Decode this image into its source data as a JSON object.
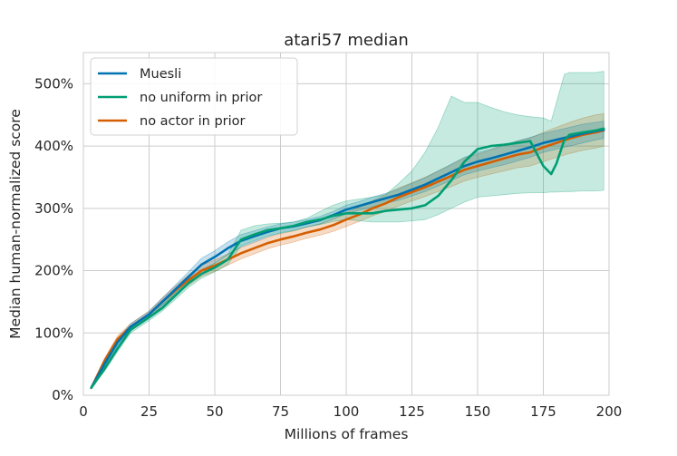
{
  "chart_data": {
    "type": "line",
    "title": "atari57 median",
    "xlabel": "Millions of frames",
    "ylabel": "Median human-normalized score",
    "xlim": [
      0,
      200
    ],
    "ylim": [
      0,
      550
    ],
    "xticks": [
      0,
      25,
      50,
      75,
      100,
      125,
      150,
      175,
      200
    ],
    "xtick_labels": [
      "0",
      "25",
      "50",
      "75",
      "100",
      "125",
      "150",
      "175",
      "200"
    ],
    "yticks": [
      0,
      100,
      200,
      300,
      400,
      500
    ],
    "ytick_labels": [
      "0%",
      "100%",
      "200%",
      "300%",
      "400%",
      "500%"
    ],
    "grid": true,
    "legend_position": "top-left",
    "series": [
      {
        "name": "Muesli",
        "color": "#0072b2",
        "x": [
          3,
          8,
          13,
          18,
          25,
          30,
          35,
          40,
          45,
          50,
          55,
          60,
          65,
          70,
          75,
          80,
          85,
          90,
          95,
          100,
          105,
          110,
          115,
          120,
          125,
          130,
          135,
          140,
          145,
          150,
          155,
          160,
          165,
          170,
          175,
          180,
          185,
          190,
          195,
          198
        ],
        "y": [
          12,
          50,
          85,
          110,
          130,
          150,
          170,
          190,
          210,
          222,
          236,
          248,
          255,
          262,
          268,
          271,
          276,
          281,
          289,
          298,
          304,
          310,
          316,
          322,
          330,
          338,
          348,
          358,
          368,
          375,
          380,
          386,
          392,
          398,
          405,
          410,
          415,
          420,
          424,
          426
        ],
        "lower": [
          12,
          46,
          80,
          105,
          125,
          144,
          163,
          182,
          200,
          212,
          226,
          238,
          246,
          254,
          261,
          265,
          270,
          275,
          283,
          291,
          297,
          302,
          308,
          313,
          320,
          327,
          336,
          345,
          354,
          360,
          365,
          370,
          376,
          382,
          390,
          395,
          400,
          405,
          410,
          412
        ],
        "upper": [
          12,
          54,
          90,
          115,
          135,
          156,
          177,
          198,
          220,
          232,
          246,
          258,
          264,
          270,
          275,
          278,
          282,
          287,
          295,
          305,
          311,
          318,
          324,
          331,
          340,
          349,
          360,
          371,
          382,
          390,
          395,
          402,
          408,
          414,
          420,
          425,
          430,
          435,
          438,
          440
        ]
      },
      {
        "name": "no uniform in prior",
        "color": "#009e73",
        "x": [
          3,
          8,
          13,
          18,
          25,
          30,
          35,
          40,
          45,
          50,
          55,
          60,
          65,
          70,
          75,
          80,
          85,
          90,
          95,
          100,
          105,
          110,
          115,
          120,
          125,
          130,
          135,
          140,
          145,
          150,
          155,
          160,
          165,
          170,
          175,
          178,
          180,
          183,
          185,
          190,
          195,
          198
        ],
        "y": [
          12,
          42,
          75,
          105,
          125,
          140,
          160,
          180,
          195,
          205,
          218,
          250,
          258,
          265,
          268,
          272,
          278,
          282,
          288,
          292,
          292,
          292,
          296,
          298,
          300,
          305,
          320,
          345,
          375,
          395,
          400,
          402,
          405,
          408,
          368,
          355,
          372,
          410,
          418,
          422,
          425,
          428
        ],
        "lower": [
          12,
          38,
          70,
          100,
          120,
          135,
          154,
          173,
          188,
          198,
          210,
          240,
          248,
          256,
          260,
          264,
          270,
          274,
          279,
          282,
          280,
          278,
          278,
          278,
          280,
          282,
          290,
          300,
          310,
          318,
          320,
          322,
          324,
          325,
          325,
          326,
          326,
          327,
          327,
          328,
          328,
          329
        ],
        "upper": [
          12,
          46,
          80,
          110,
          130,
          146,
          166,
          187,
          202,
          212,
          226,
          265,
          272,
          275,
          276,
          278,
          284,
          295,
          305,
          312,
          315,
          318,
          322,
          340,
          360,
          390,
          430,
          480,
          470,
          470,
          462,
          455,
          450,
          447,
          445,
          440,
          470,
          515,
          518,
          518,
          518,
          520
        ]
      },
      {
        "name": "no actor in prior",
        "color": "#d55e00",
        "x": [
          3,
          8,
          13,
          18,
          25,
          30,
          35,
          40,
          45,
          50,
          55,
          60,
          65,
          70,
          75,
          80,
          85,
          90,
          95,
          100,
          105,
          110,
          115,
          120,
          125,
          130,
          135,
          140,
          145,
          150,
          155,
          160,
          165,
          170,
          175,
          180,
          185,
          190,
          195,
          198
        ],
        "y": [
          12,
          55,
          90,
          110,
          130,
          150,
          168,
          185,
          200,
          208,
          218,
          228,
          236,
          244,
          250,
          255,
          261,
          266,
          273,
          282,
          290,
          300,
          308,
          318,
          326,
          334,
          343,
          352,
          362,
          368,
          374,
          380,
          386,
          390,
          398,
          405,
          412,
          418,
          422,
          425
        ],
        "lower": [
          12,
          51,
          85,
          105,
          125,
          144,
          161,
          177,
          191,
          199,
          209,
          219,
          227,
          235,
          241,
          246,
          252,
          257,
          263,
          271,
          279,
          288,
          295,
          304,
          312,
          319,
          327,
          335,
          344,
          350,
          355,
          360,
          365,
          368,
          375,
          382,
          388,
          393,
          397,
          400
        ],
        "upper": [
          12,
          59,
          95,
          115,
          135,
          156,
          175,
          193,
          209,
          217,
          227,
          237,
          245,
          253,
          259,
          264,
          270,
          275,
          283,
          293,
          302,
          312,
          322,
          333,
          341,
          350,
          360,
          370,
          381,
          387,
          394,
          401,
          408,
          413,
          422,
          430,
          438,
          445,
          450,
          452
        ]
      }
    ]
  }
}
